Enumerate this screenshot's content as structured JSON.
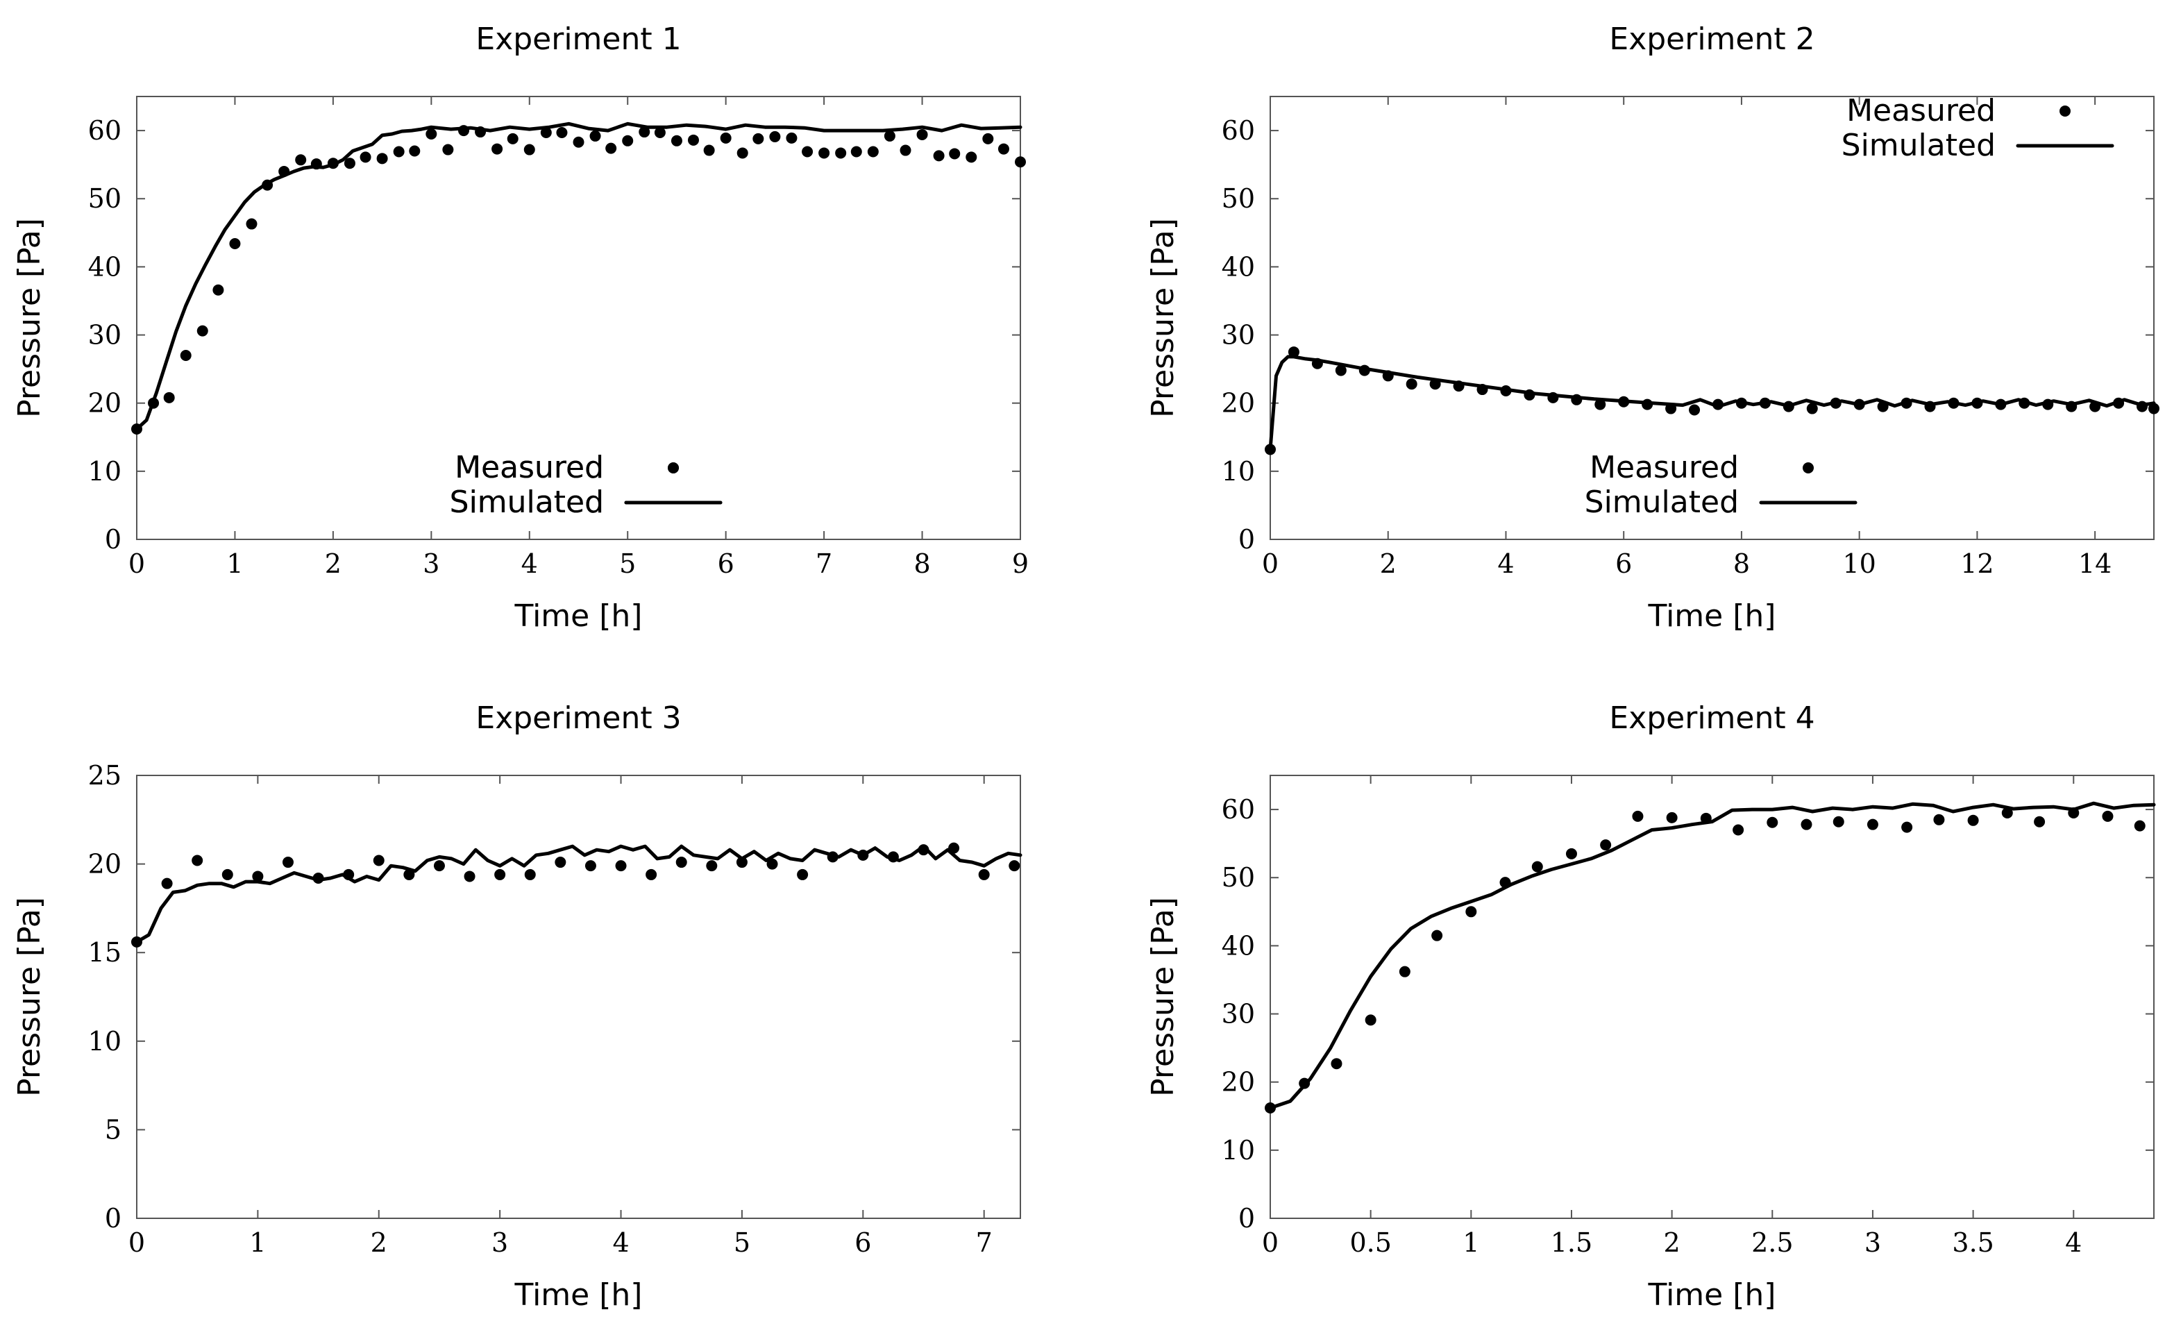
{
  "figure": {
    "legend_measured": "Measured",
    "legend_simulated": "Simulated",
    "xlabel": "Time [h]",
    "ylabel": "Pressure [Pa]"
  },
  "chart_data": [
    {
      "type": "line",
      "title": "Experiment 1",
      "xlabel": "Time [h]",
      "ylabel": "Pressure [Pa]",
      "xlim": [
        0,
        9
      ],
      "ylim": [
        0,
        65
      ],
      "xticks": [
        0,
        1,
        2,
        3,
        4,
        5,
        6,
        7,
        8,
        9
      ],
      "yticks": [
        0,
        10,
        20,
        30,
        40,
        50,
        60
      ],
      "legend_position": "bottom-center",
      "series": [
        {
          "name": "Measured",
          "style": "points",
          "x": [
            0,
            0.17,
            0.33,
            0.5,
            0.67,
            0.83,
            1.0,
            1.17,
            1.33,
            1.5,
            1.67,
            1.83,
            2.0,
            2.17,
            2.33,
            2.5,
            2.67,
            2.83,
            3.0,
            3.17,
            3.33,
            3.5,
            3.67,
            3.83,
            4.0,
            4.17,
            4.33,
            4.5,
            4.67,
            4.83,
            5.0,
            5.17,
            5.33,
            5.5,
            5.67,
            5.83,
            6.0,
            6.17,
            6.33,
            6.5,
            6.67,
            6.83,
            7.0,
            7.17,
            7.33,
            7.5,
            7.67,
            7.83,
            8.0,
            8.17,
            8.33,
            8.5,
            8.67,
            8.83,
            9.0
          ],
          "y": [
            16.2,
            20.0,
            20.8,
            27.0,
            30.6,
            36.6,
            43.4,
            46.3,
            52.0,
            54.0,
            55.7,
            55.1,
            55.2,
            55.2,
            56.1,
            55.9,
            56.9,
            57.0,
            59.5,
            57.2,
            60.0,
            59.8,
            57.3,
            58.8,
            57.2,
            59.7,
            59.7,
            58.3,
            59.2,
            57.4,
            58.5,
            59.8,
            59.7,
            58.5,
            58.6,
            57.1,
            58.9,
            56.7,
            58.8,
            59.1,
            58.9,
            56.9,
            56.7,
            56.7,
            56.9,
            56.9,
            59.2,
            57.1,
            59.4,
            56.3,
            56.6,
            56.1,
            58.8,
            57.3,
            55.4
          ]
        },
        {
          "name": "Simulated",
          "style": "line",
          "x": [
            0,
            0.1,
            0.2,
            0.3,
            0.4,
            0.5,
            0.6,
            0.7,
            0.8,
            0.9,
            1.0,
            1.1,
            1.2,
            1.3,
            1.4,
            1.5,
            1.6,
            1.7,
            1.8,
            1.9,
            2.0,
            2.1,
            2.2,
            2.3,
            2.4,
            2.5,
            2.6,
            2.7,
            2.8,
            2.9,
            3.0,
            3.2,
            3.4,
            3.6,
            3.8,
            4.0,
            4.2,
            4.4,
            4.6,
            4.8,
            5.0,
            5.2,
            5.4,
            5.6,
            5.8,
            6.0,
            6.2,
            6.4,
            6.6,
            6.8,
            7.0,
            7.2,
            7.4,
            7.6,
            7.8,
            8.0,
            8.2,
            8.4,
            8.6,
            8.8,
            9.0
          ],
          "y": [
            16.2,
            17.5,
            21.5,
            26.0,
            30.5,
            34.3,
            37.5,
            40.3,
            43.0,
            45.5,
            47.5,
            49.5,
            51.0,
            52.0,
            52.8,
            53.4,
            54.0,
            54.5,
            54.7,
            54.6,
            55.0,
            55.7,
            57.0,
            57.5,
            58.0,
            59.3,
            59.5,
            59.9,
            60.0,
            60.2,
            60.5,
            60.2,
            60.4,
            60.0,
            60.5,
            60.2,
            60.5,
            61.0,
            60.3,
            60.0,
            61.0,
            60.5,
            60.5,
            60.8,
            60.6,
            60.2,
            60.8,
            60.5,
            60.5,
            60.4,
            60.0,
            60.0,
            60.0,
            60.0,
            60.2,
            60.5,
            60.0,
            60.8,
            60.3,
            60.4,
            60.5
          ]
        }
      ]
    },
    {
      "type": "line",
      "title": "Experiment 2",
      "xlabel": "Time [h]",
      "ylabel": "Pressure [Pa]",
      "xlim": [
        0,
        15
      ],
      "ylim": [
        0,
        65
      ],
      "xticks": [
        0,
        2,
        4,
        6,
        8,
        10,
        12,
        14
      ],
      "yticks": [
        0,
        10,
        20,
        30,
        40,
        50,
        60
      ],
      "legend_position": "top-right",
      "series": [
        {
          "name": "Measured",
          "style": "points",
          "x": [
            0,
            0.4,
            0.8,
            1.2,
            1.6,
            2.0,
            2.4,
            2.8,
            3.2,
            3.6,
            4.0,
            4.4,
            4.8,
            5.2,
            5.6,
            6.0,
            6.4,
            6.8,
            7.2,
            7.6,
            8.0,
            8.4,
            8.8,
            9.2,
            9.6,
            10.0,
            10.4,
            10.8,
            11.2,
            11.6,
            12.0,
            12.4,
            12.8,
            13.2,
            13.6,
            14.0,
            14.4,
            14.8,
            15.0
          ],
          "y": [
            13.2,
            27.5,
            25.8,
            24.8,
            24.8,
            24.0,
            22.8,
            22.8,
            22.5,
            22.0,
            21.8,
            21.2,
            20.8,
            20.5,
            19.8,
            20.2,
            19.8,
            19.2,
            19.0,
            19.8,
            20.0,
            20.0,
            19.5,
            19.2,
            20.0,
            19.8,
            19.5,
            20.0,
            19.5,
            20.0,
            20.0,
            19.8,
            20.0,
            19.8,
            19.5,
            19.5,
            20.0,
            19.5,
            19.2
          ]
        },
        {
          "name": "Simulated",
          "style": "line",
          "x": [
            0,
            0.1,
            0.2,
            0.3,
            0.4,
            0.6,
            0.8,
            1.0,
            1.5,
            2.0,
            2.5,
            3.0,
            3.5,
            4.0,
            4.5,
            5.0,
            5.5,
            6.0,
            6.5,
            7.0,
            7.3,
            7.6,
            7.9,
            8.2,
            8.5,
            8.8,
            9.1,
            9.4,
            9.7,
            10.0,
            10.3,
            10.6,
            10.9,
            11.2,
            11.5,
            11.8,
            12.1,
            12.4,
            12.7,
            13.0,
            13.3,
            13.6,
            13.9,
            14.2,
            14.5,
            14.8,
            15.0
          ],
          "y": [
            13.2,
            24.0,
            26.0,
            26.8,
            26.8,
            26.5,
            26.3,
            26.0,
            25.2,
            24.5,
            23.8,
            23.2,
            22.6,
            22.0,
            21.4,
            21.0,
            20.6,
            20.3,
            20.0,
            19.7,
            20.5,
            19.5,
            20.3,
            19.8,
            20.2,
            19.6,
            20.4,
            19.7,
            20.3,
            19.8,
            20.5,
            19.6,
            20.4,
            19.8,
            20.2,
            19.7,
            20.3,
            19.8,
            20.5,
            19.7,
            20.3,
            19.8,
            20.4,
            19.6,
            20.5,
            19.7,
            20.0
          ]
        }
      ]
    },
    {
      "type": "line",
      "title": "Experiment 3",
      "xlabel": "Time [h]",
      "ylabel": "Pressure [Pa]",
      "xlim": [
        0,
        7.3
      ],
      "ylim": [
        0,
        25
      ],
      "xticks": [
        0,
        1,
        2,
        3,
        4,
        5,
        6,
        7
      ],
      "yticks": [
        0,
        5,
        10,
        15,
        20,
        25
      ],
      "legend_position": "bottom-center",
      "series": [
        {
          "name": "Measured",
          "style": "points",
          "x": [
            0,
            0.25,
            0.5,
            0.75,
            1.0,
            1.25,
            1.5,
            1.75,
            2.0,
            2.25,
            2.5,
            2.75,
            3.0,
            3.25,
            3.5,
            3.75,
            4.0,
            4.25,
            4.5,
            4.75,
            5.0,
            5.25,
            5.5,
            5.75,
            6.0,
            6.25,
            6.5,
            6.75,
            7.0,
            7.25
          ],
          "y": [
            15.6,
            18.9,
            20.2,
            19.4,
            19.3,
            20.1,
            19.2,
            19.4,
            20.2,
            19.4,
            19.9,
            19.3,
            19.4,
            19.4,
            20.1,
            19.9,
            19.9,
            19.4,
            20.1,
            19.9,
            20.1,
            20.0,
            19.4,
            20.4,
            20.5,
            20.4,
            20.8,
            20.9,
            19.4,
            19.9
          ]
        },
        {
          "name": "Simulated",
          "style": "line",
          "x": [
            0,
            0.1,
            0.2,
            0.3,
            0.4,
            0.5,
            0.6,
            0.7,
            0.8,
            0.9,
            1.0,
            1.1,
            1.2,
            1.3,
            1.4,
            1.5,
            1.6,
            1.7,
            1.8,
            1.9,
            2.0,
            2.1,
            2.2,
            2.3,
            2.4,
            2.5,
            2.6,
            2.7,
            2.8,
            2.9,
            3.0,
            3.1,
            3.2,
            3.3,
            3.4,
            3.5,
            3.6,
            3.7,
            3.8,
            3.9,
            4.0,
            4.1,
            4.2,
            4.3,
            4.4,
            4.5,
            4.6,
            4.7,
            4.8,
            4.9,
            5.0,
            5.1,
            5.2,
            5.3,
            5.4,
            5.5,
            5.6,
            5.7,
            5.8,
            5.9,
            6.0,
            6.1,
            6.2,
            6.3,
            6.4,
            6.5,
            6.6,
            6.7,
            6.8,
            6.9,
            7.0,
            7.1,
            7.2,
            7.3
          ],
          "y": [
            15.6,
            16.0,
            17.5,
            18.4,
            18.5,
            18.8,
            18.9,
            18.9,
            18.7,
            19.0,
            19.0,
            18.9,
            19.2,
            19.5,
            19.3,
            19.1,
            19.2,
            19.4,
            19.0,
            19.3,
            19.1,
            19.9,
            19.8,
            19.6,
            20.2,
            20.4,
            20.3,
            20.0,
            20.8,
            20.2,
            19.9,
            20.3,
            19.9,
            20.5,
            20.6,
            20.8,
            21.0,
            20.5,
            20.8,
            20.7,
            21.0,
            20.8,
            21.0,
            20.3,
            20.4,
            21.0,
            20.5,
            20.4,
            20.3,
            20.8,
            20.3,
            20.7,
            20.2,
            20.6,
            20.3,
            20.2,
            20.8,
            20.6,
            20.4,
            20.8,
            20.5,
            20.9,
            20.4,
            20.2,
            20.5,
            21.0,
            20.3,
            20.8,
            20.2,
            20.1,
            19.9,
            20.3,
            20.6,
            20.5
          ]
        }
      ]
    },
    {
      "type": "line",
      "title": "Experiment 4",
      "xlabel": "Time [h]",
      "ylabel": "Pressure [Pa]",
      "xlim": [
        0,
        4.4
      ],
      "ylim": [
        0,
        65
      ],
      "xticks": [
        0,
        0.5,
        1,
        1.5,
        2,
        2.5,
        3,
        3.5,
        4
      ],
      "yticks": [
        0,
        10,
        20,
        30,
        40,
        50,
        60
      ],
      "legend_position": "bottom-center",
      "series": [
        {
          "name": "Measured",
          "style": "points",
          "x": [
            0,
            0.17,
            0.33,
            0.5,
            0.67,
            0.83,
            1.0,
            1.17,
            1.33,
            1.5,
            1.67,
            1.83,
            2.0,
            2.17,
            2.33,
            2.5,
            2.67,
            2.83,
            3.0,
            3.17,
            3.33,
            3.5,
            3.67,
            3.83,
            4.0,
            4.17,
            4.33
          ],
          "y": [
            16.2,
            19.8,
            22.7,
            29.1,
            36.2,
            41.5,
            45.0,
            49.3,
            51.6,
            53.5,
            54.8,
            59.0,
            58.8,
            58.7,
            57.0,
            58.1,
            57.8,
            58.2,
            57.8,
            57.4,
            58.5,
            58.4,
            59.5,
            58.2,
            59.5,
            59.0,
            57.6
          ]
        },
        {
          "name": "Simulated",
          "style": "line",
          "x": [
            0,
            0.1,
            0.2,
            0.3,
            0.4,
            0.5,
            0.6,
            0.7,
            0.8,
            0.9,
            1.0,
            1.1,
            1.2,
            1.3,
            1.4,
            1.5,
            1.6,
            1.7,
            1.8,
            1.9,
            2.0,
            2.1,
            2.2,
            2.3,
            2.4,
            2.5,
            2.6,
            2.7,
            2.8,
            2.9,
            3.0,
            3.1,
            3.2,
            3.3,
            3.4,
            3.5,
            3.6,
            3.7,
            3.8,
            3.9,
            4.0,
            4.1,
            4.2,
            4.3,
            4.4
          ],
          "y": [
            16.2,
            17.2,
            20.5,
            25.0,
            30.5,
            35.5,
            39.5,
            42.5,
            44.3,
            45.5,
            46.5,
            47.5,
            49.0,
            50.2,
            51.2,
            52.0,
            52.8,
            54.0,
            55.5,
            57.0,
            57.3,
            57.8,
            58.2,
            59.9,
            60.0,
            60.0,
            60.3,
            59.7,
            60.2,
            60.0,
            60.4,
            60.2,
            60.8,
            60.6,
            59.7,
            60.3,
            60.7,
            60.1,
            60.3,
            60.4,
            60.0,
            60.9,
            60.2,
            60.6,
            60.7
          ]
        }
      ]
    }
  ]
}
